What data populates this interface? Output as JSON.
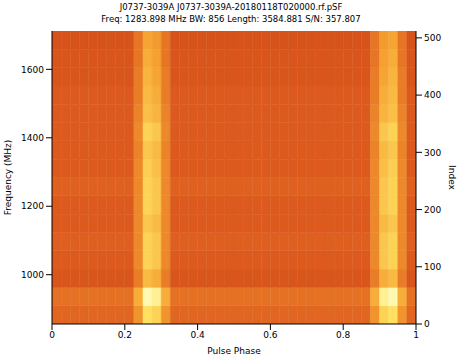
{
  "chart_data": {
    "type": "heatmap",
    "title": "J0737-3039A J0737-3039A-20180118T020000.rf.pSF",
    "subtitle": "Freq: 1283.898 MHz BW: 856 Length: 3584.881 S/N: 357.807",
    "x_label": "Pulse Phase",
    "y_label": "Frequency (MHz)",
    "y2_label": "Index",
    "xlim": [
      0,
      1
    ],
    "xticks": [
      0,
      0.2,
      0.4,
      0.6,
      0.8,
      1
    ],
    "ylim": [
      856,
      1712
    ],
    "yticks": [
      1000,
      1200,
      1400,
      1600
    ],
    "y2lim": [
      0,
      512
    ],
    "y2ticks": [
      0,
      100,
      200,
      300,
      400,
      500
    ],
    "zlim": [
      0,
      1
    ],
    "phase_bins": [
      0,
      0.025,
      0.05,
      0.075,
      0.1,
      0.125,
      0.15,
      0.175,
      0.2,
      0.225,
      0.25,
      0.275,
      0.3,
      0.325,
      0.35,
      0.375,
      0.4,
      0.425,
      0.45,
      0.475,
      0.5,
      0.525,
      0.55,
      0.575,
      0.6,
      0.625,
      0.65,
      0.675,
      0.7,
      0.725,
      0.75,
      0.775,
      0.8,
      0.825,
      0.85,
      0.875,
      0.9,
      0.925,
      0.95,
      0.975,
      1
    ],
    "freq_bins": [
      856,
      909.5,
      963,
      1016.5,
      1070,
      1123.5,
      1177,
      1230.5,
      1284,
      1337.5,
      1391,
      1444.5,
      1498,
      1551.5,
      1605,
      1658.5,
      1712
    ],
    "cells": [
      [
        0.35,
        0.35,
        0.35,
        0.35,
        0.35,
        0.35,
        0.35,
        0.35,
        0.35,
        0.55,
        0.85,
        0.8,
        0.55,
        0.35,
        0.35,
        0.35,
        0.35,
        0.35,
        0.35,
        0.35,
        0.35,
        0.35,
        0.35,
        0.35,
        0.35,
        0.35,
        0.35,
        0.35,
        0.35,
        0.35,
        0.35,
        0.35,
        0.35,
        0.35,
        0.35,
        0.55,
        0.8,
        0.85,
        0.55,
        0.35
      ],
      [
        0.4,
        0.4,
        0.4,
        0.4,
        0.4,
        0.4,
        0.4,
        0.4,
        0.4,
        0.65,
        1.0,
        0.95,
        0.65,
        0.4,
        0.4,
        0.4,
        0.4,
        0.4,
        0.4,
        0.4,
        0.4,
        0.4,
        0.4,
        0.4,
        0.4,
        0.4,
        0.4,
        0.4,
        0.4,
        0.4,
        0.4,
        0.4,
        0.4,
        0.4,
        0.4,
        0.65,
        0.95,
        1.0,
        0.65,
        0.4
      ],
      [
        0.28,
        0.28,
        0.28,
        0.28,
        0.28,
        0.28,
        0.28,
        0.28,
        0.28,
        0.45,
        0.7,
        0.65,
        0.45,
        0.28,
        0.28,
        0.28,
        0.28,
        0.28,
        0.28,
        0.28,
        0.28,
        0.28,
        0.28,
        0.28,
        0.28,
        0.28,
        0.28,
        0.28,
        0.28,
        0.28,
        0.28,
        0.28,
        0.28,
        0.28,
        0.28,
        0.45,
        0.65,
        0.7,
        0.45,
        0.28
      ],
      [
        0.3,
        0.3,
        0.3,
        0.3,
        0.3,
        0.3,
        0.3,
        0.3,
        0.3,
        0.5,
        0.8,
        0.75,
        0.5,
        0.3,
        0.3,
        0.3,
        0.3,
        0.3,
        0.3,
        0.3,
        0.3,
        0.3,
        0.3,
        0.3,
        0.3,
        0.3,
        0.3,
        0.3,
        0.3,
        0.3,
        0.3,
        0.3,
        0.3,
        0.3,
        0.3,
        0.5,
        0.75,
        0.8,
        0.5,
        0.3
      ],
      [
        0.32,
        0.32,
        0.32,
        0.32,
        0.32,
        0.32,
        0.32,
        0.32,
        0.32,
        0.5,
        0.8,
        0.75,
        0.5,
        0.32,
        0.32,
        0.32,
        0.32,
        0.32,
        0.32,
        0.32,
        0.32,
        0.32,
        0.32,
        0.32,
        0.32,
        0.32,
        0.32,
        0.32,
        0.32,
        0.32,
        0.32,
        0.32,
        0.32,
        0.32,
        0.32,
        0.5,
        0.75,
        0.8,
        0.5,
        0.32
      ],
      [
        0.3,
        0.3,
        0.3,
        0.3,
        0.3,
        0.3,
        0.3,
        0.3,
        0.3,
        0.5,
        0.75,
        0.7,
        0.5,
        0.3,
        0.3,
        0.3,
        0.3,
        0.3,
        0.3,
        0.3,
        0.3,
        0.3,
        0.3,
        0.3,
        0.3,
        0.3,
        0.3,
        0.3,
        0.3,
        0.3,
        0.3,
        0.3,
        0.3,
        0.3,
        0.3,
        0.5,
        0.7,
        0.75,
        0.5,
        0.3
      ],
      [
        0.3,
        0.3,
        0.3,
        0.3,
        0.3,
        0.3,
        0.3,
        0.3,
        0.3,
        0.5,
        0.8,
        0.75,
        0.5,
        0.3,
        0.3,
        0.3,
        0.3,
        0.3,
        0.3,
        0.3,
        0.3,
        0.3,
        0.3,
        0.3,
        0.3,
        0.3,
        0.3,
        0.3,
        0.3,
        0.3,
        0.3,
        0.3,
        0.3,
        0.3,
        0.3,
        0.5,
        0.75,
        0.8,
        0.5,
        0.3
      ],
      [
        0.33,
        0.33,
        0.33,
        0.33,
        0.33,
        0.33,
        0.33,
        0.33,
        0.33,
        0.5,
        0.8,
        0.75,
        0.5,
        0.33,
        0.33,
        0.33,
        0.33,
        0.33,
        0.33,
        0.33,
        0.33,
        0.33,
        0.33,
        0.33,
        0.33,
        0.33,
        0.33,
        0.33,
        0.33,
        0.33,
        0.33,
        0.33,
        0.33,
        0.33,
        0.33,
        0.5,
        0.75,
        0.8,
        0.5,
        0.33
      ],
      [
        0.3,
        0.3,
        0.3,
        0.3,
        0.3,
        0.3,
        0.3,
        0.3,
        0.3,
        0.5,
        0.78,
        0.72,
        0.5,
        0.3,
        0.3,
        0.3,
        0.3,
        0.3,
        0.3,
        0.3,
        0.3,
        0.3,
        0.3,
        0.3,
        0.3,
        0.3,
        0.3,
        0.3,
        0.3,
        0.3,
        0.3,
        0.3,
        0.3,
        0.3,
        0.3,
        0.5,
        0.72,
        0.78,
        0.5,
        0.3
      ],
      [
        0.3,
        0.3,
        0.3,
        0.3,
        0.3,
        0.3,
        0.3,
        0.3,
        0.3,
        0.48,
        0.75,
        0.7,
        0.48,
        0.3,
        0.3,
        0.3,
        0.3,
        0.3,
        0.3,
        0.3,
        0.3,
        0.3,
        0.3,
        0.3,
        0.3,
        0.3,
        0.3,
        0.3,
        0.3,
        0.3,
        0.3,
        0.3,
        0.3,
        0.3,
        0.3,
        0.48,
        0.7,
        0.75,
        0.48,
        0.3
      ],
      [
        0.3,
        0.3,
        0.3,
        0.3,
        0.3,
        0.3,
        0.3,
        0.3,
        0.3,
        0.5,
        0.8,
        0.75,
        0.5,
        0.3,
        0.3,
        0.3,
        0.3,
        0.3,
        0.3,
        0.3,
        0.3,
        0.3,
        0.3,
        0.3,
        0.3,
        0.3,
        0.3,
        0.3,
        0.3,
        0.3,
        0.3,
        0.3,
        0.3,
        0.3,
        0.3,
        0.5,
        0.75,
        0.8,
        0.5,
        0.3
      ],
      [
        0.3,
        0.3,
        0.3,
        0.3,
        0.3,
        0.3,
        0.3,
        0.3,
        0.3,
        0.48,
        0.72,
        0.68,
        0.48,
        0.3,
        0.3,
        0.3,
        0.3,
        0.3,
        0.3,
        0.3,
        0.3,
        0.3,
        0.3,
        0.3,
        0.3,
        0.3,
        0.3,
        0.3,
        0.3,
        0.3,
        0.3,
        0.3,
        0.3,
        0.3,
        0.3,
        0.48,
        0.68,
        0.72,
        0.48,
        0.3
      ],
      [
        0.3,
        0.3,
        0.3,
        0.3,
        0.3,
        0.3,
        0.3,
        0.3,
        0.3,
        0.45,
        0.7,
        0.65,
        0.45,
        0.3,
        0.3,
        0.3,
        0.3,
        0.3,
        0.3,
        0.3,
        0.3,
        0.3,
        0.3,
        0.3,
        0.3,
        0.3,
        0.3,
        0.3,
        0.3,
        0.3,
        0.3,
        0.3,
        0.3,
        0.3,
        0.3,
        0.45,
        0.65,
        0.7,
        0.45,
        0.3
      ],
      [
        0.28,
        0.28,
        0.28,
        0.28,
        0.28,
        0.28,
        0.28,
        0.28,
        0.28,
        0.45,
        0.68,
        0.62,
        0.45,
        0.28,
        0.28,
        0.28,
        0.28,
        0.28,
        0.28,
        0.28,
        0.28,
        0.28,
        0.28,
        0.28,
        0.28,
        0.28,
        0.28,
        0.28,
        0.28,
        0.28,
        0.28,
        0.28,
        0.28,
        0.28,
        0.28,
        0.45,
        0.62,
        0.68,
        0.45,
        0.28
      ],
      [
        0.28,
        0.28,
        0.28,
        0.28,
        0.28,
        0.28,
        0.28,
        0.28,
        0.28,
        0.42,
        0.65,
        0.6,
        0.42,
        0.28,
        0.28,
        0.28,
        0.28,
        0.28,
        0.28,
        0.28,
        0.28,
        0.28,
        0.28,
        0.28,
        0.28,
        0.28,
        0.28,
        0.28,
        0.28,
        0.28,
        0.28,
        0.28,
        0.28,
        0.28,
        0.28,
        0.42,
        0.6,
        0.65,
        0.42,
        0.28
      ],
      [
        0.27,
        0.27,
        0.27,
        0.27,
        0.27,
        0.27,
        0.27,
        0.27,
        0.27,
        0.42,
        0.62,
        0.58,
        0.42,
        0.27,
        0.27,
        0.27,
        0.27,
        0.27,
        0.27,
        0.27,
        0.27,
        0.27,
        0.27,
        0.27,
        0.27,
        0.27,
        0.27,
        0.27,
        0.27,
        0.27,
        0.27,
        0.27,
        0.27,
        0.27,
        0.27,
        0.42,
        0.58,
        0.62,
        0.42,
        0.27
      ]
    ]
  }
}
